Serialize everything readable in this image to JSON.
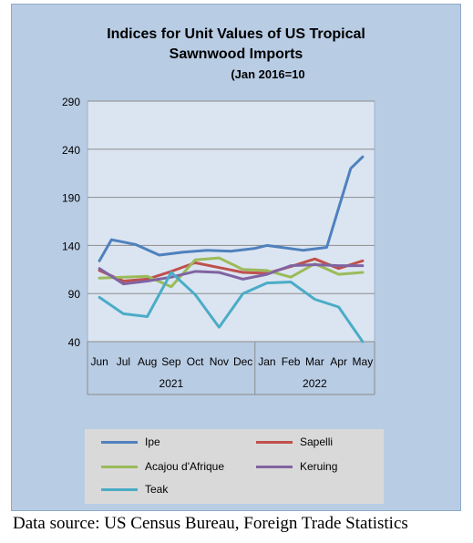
{
  "source": "Data source: US Census Bureau, Foreign Trade Statistics",
  "chart_data": {
    "type": "line",
    "title": "Indices for Unit Values of US Tropical Sawnwood Imports",
    "title_lines": [
      "Indices for Unit Values of US Tropical",
      "Sawnwood Imports"
    ],
    "subtitle": "(Jan 2016=10",
    "categories": [
      "Jun",
      "Jul",
      "Aug",
      "Sep",
      "Oct",
      "Nov",
      "Dec",
      "Jan",
      "Feb",
      "Mar",
      "Apr",
      "May"
    ],
    "year_groups": [
      {
        "label": "2021",
        "start": 0,
        "end": 6
      },
      {
        "label": "2022",
        "start": 7,
        "end": 11
      }
    ],
    "ylim": [
      40,
      290
    ],
    "yticks": [
      40,
      90,
      140,
      190,
      240,
      290
    ],
    "grid": true,
    "legend_position": "bottom",
    "series": [
      {
        "name": "Ipe",
        "color": "#4f81bd",
        "values": [
          124,
          146,
          141,
          130,
          133,
          135,
          134,
          137,
          140,
          135,
          138,
          220,
          232
        ],
        "x": [
          0,
          0.5,
          1.5,
          2.5,
          3.5,
          4.5,
          5.5,
          6.5,
          7,
          8.5,
          9.5,
          10.5,
          11
        ]
      },
      {
        "name": "Sapelli",
        "color": "#c0504d",
        "values": [
          114,
          103,
          105,
          113,
          122,
          117,
          112,
          111,
          118,
          126,
          116,
          124
        ],
        "x": [
          0,
          1,
          2,
          3,
          4,
          5,
          6,
          7,
          8,
          9,
          10,
          11
        ]
      },
      {
        "name": "Acajou d'Afrique",
        "color": "#9bbb59",
        "values": [
          106,
          107,
          108,
          97,
          125,
          127,
          115,
          114,
          107,
          121,
          110,
          112
        ],
        "x": [
          0,
          1,
          2,
          3,
          4,
          5,
          6,
          7,
          8,
          9,
          10,
          11
        ]
      },
      {
        "name": "Keruing",
        "color": "#8064a2",
        "values": [
          116,
          100,
          103,
          107,
          113,
          112,
          105,
          110,
          119,
          120,
          119,
          119
        ],
        "x": [
          0,
          1,
          2,
          3,
          4,
          5,
          6,
          7,
          8,
          9,
          10,
          11
        ]
      },
      {
        "name": "Teak",
        "color": "#4bacc6",
        "values": [
          86,
          69,
          66,
          112,
          89,
          55,
          90,
          101,
          102,
          84,
          76,
          40
        ],
        "x": [
          0,
          1,
          2,
          3,
          4,
          5,
          6,
          7,
          8,
          9,
          10,
          11
        ]
      }
    ]
  }
}
